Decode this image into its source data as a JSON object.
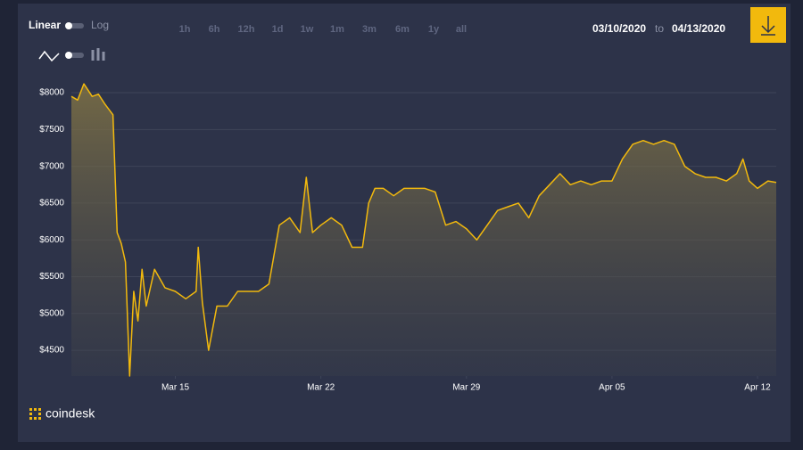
{
  "controls": {
    "scale": [
      "Linear",
      "Log"
    ],
    "ranges": [
      "1h",
      "6h",
      "12h",
      "1d",
      "1w",
      "1m",
      "3m",
      "6m",
      "1y",
      "all"
    ],
    "date_from": "03/10/2020",
    "date_sep": "to",
    "date_to": "04/13/2020",
    "brand": "coindesk"
  },
  "chart_data": {
    "type": "area",
    "color": "#f2b90d",
    "grid": true,
    "x": [
      10,
      10.3,
      10.6,
      11,
      11.3,
      11.6,
      12,
      12.2,
      12.4,
      12.6,
      12.8,
      13,
      13.2,
      13.4,
      13.6,
      14,
      14.5,
      15,
      15.5,
      16,
      16.1,
      16.3,
      16.6,
      17,
      17.5,
      18,
      18.5,
      19,
      19.5,
      20,
      20.5,
      21,
      21.3,
      21.6,
      22,
      22.5,
      23,
      23.5,
      24,
      24.3,
      24.6,
      25,
      25.5,
      26,
      26.5,
      27,
      27.5,
      28,
      28.5,
      29,
      29.5,
      30,
      30.5,
      31,
      31.5,
      32,
      32.5,
      33,
      33.5,
      34,
      34.5,
      35,
      35.5,
      36,
      36.5,
      37,
      37.5,
      38,
      38.5,
      39,
      39.5,
      40,
      40.5,
      41,
      41.5,
      42,
      42.3,
      42.6,
      43,
      43.5,
      43.9
    ],
    "values": [
      7950,
      7900,
      8120,
      7950,
      7980,
      7850,
      7700,
      6100,
      5950,
      5700,
      4150,
      5300,
      4900,
      5600,
      5100,
      5600,
      5350,
      5300,
      5200,
      5300,
      5900,
      5150,
      4500,
      5100,
      5100,
      5300,
      5300,
      5300,
      5400,
      6200,
      6300,
      6100,
      6850,
      6100,
      6200,
      6300,
      6200,
      5900,
      5900,
      6500,
      6700,
      6700,
      6600,
      6700,
      6700,
      6700,
      6650,
      6200,
      6250,
      6150,
      6000,
      6200,
      6400,
      6450,
      6500,
      6300,
      6600,
      6750,
      6900,
      6750,
      6800,
      6750,
      6800,
      6800,
      7100,
      7300,
      7350,
      7300,
      7350,
      7300,
      7000,
      6900,
      6850,
      6850,
      6800,
      6900,
      7100,
      6800,
      6700,
      6800,
      6780
    ],
    "xlim": [
      10,
      43.9
    ],
    "ylim": [
      4150,
      8170
    ],
    "xticks": [
      {
        "value": 15,
        "label": "Mar 15"
      },
      {
        "value": 22,
        "label": "Mar 22"
      },
      {
        "value": 29,
        "label": "Mar 29"
      },
      {
        "value": 36,
        "label": "Apr 05"
      },
      {
        "value": 43,
        "label": "Apr 12"
      }
    ],
    "yticks": [
      {
        "value": 4500,
        "label": "$4500"
      },
      {
        "value": 5000,
        "label": "$5000"
      },
      {
        "value": 5500,
        "label": "$5500"
      },
      {
        "value": 6000,
        "label": "$6000"
      },
      {
        "value": 6500,
        "label": "$6500"
      },
      {
        "value": 7000,
        "label": "$7000"
      },
      {
        "value": 7500,
        "label": "$7500"
      },
      {
        "value": 8000,
        "label": "$8000"
      }
    ]
  }
}
